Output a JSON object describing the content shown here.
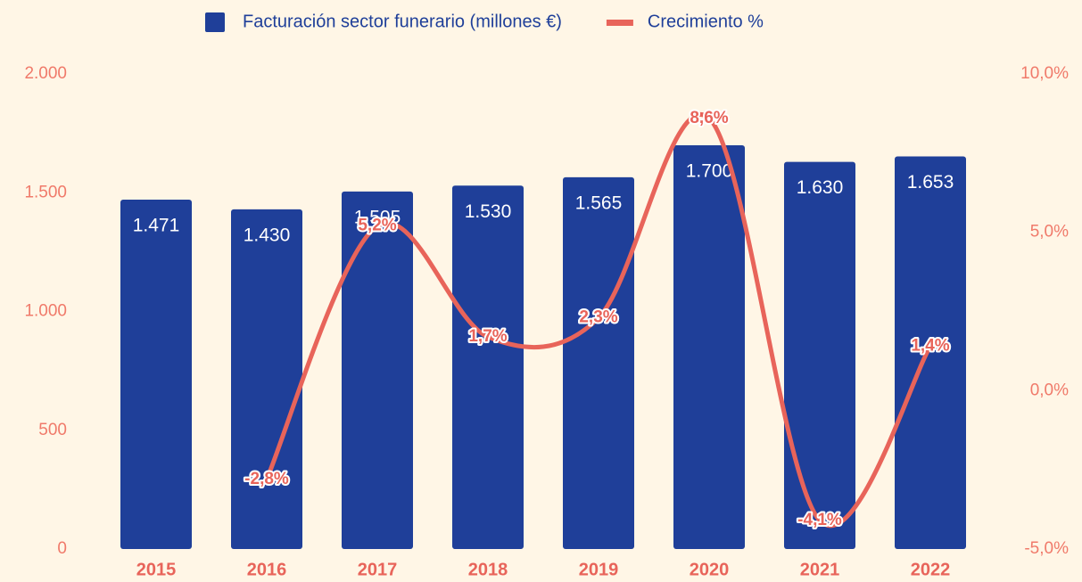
{
  "chart_data": {
    "type": "bar",
    "categories": [
      "2015",
      "2016",
      "2017",
      "2018",
      "2019",
      "2020",
      "2021",
      "2022"
    ],
    "series": [
      {
        "name": "Facturación sector funerario (millones €)",
        "color": "#1f3f99",
        "type": "bar",
        "values": [
          1471,
          1430,
          1505,
          1530,
          1565,
          1700,
          1630,
          1653
        ],
        "value_labels": [
          "1.471",
          "1.430",
          "1.505",
          "1.530",
          "1.565",
          "1.700",
          "1.630",
          "1.653"
        ]
      },
      {
        "name": "Crecimiento %",
        "color": "#e8645a",
        "type": "line",
        "axis": "y2",
        "values": [
          null,
          -2.8,
          5.2,
          1.7,
          2.3,
          8.6,
          -4.1,
          1.4
        ],
        "value_labels": [
          null,
          "-2,8%",
          "5,2%",
          "1,7%",
          "2,3%",
          "8,6%",
          "-4,1%",
          "1,4%"
        ]
      }
    ],
    "ylim": [
      0,
      2000
    ],
    "yticks": [
      0,
      500,
      {
        "value": 1000,
        "label": "1.000"
      },
      {
        "value": 1500,
        "label": "1.500"
      },
      {
        "value": 2000,
        "label": "2.000"
      }
    ],
    "y2lim": [
      -5,
      10
    ],
    "y2ticks": [
      {
        "value": -5,
        "label": "-5,0%"
      },
      {
        "value": 0,
        "label": "0,0%"
      },
      {
        "value": 5,
        "label": "5,0%"
      },
      {
        "value": 10,
        "label": "10,0%"
      }
    ],
    "legend": "top"
  }
}
